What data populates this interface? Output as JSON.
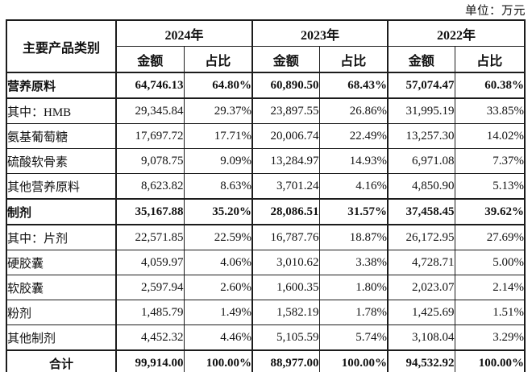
{
  "unit_label": "单位：万元",
  "table": {
    "category_header": "主要产品类别",
    "year_groups": [
      {
        "year": "2024年",
        "sub_headers": [
          "金额",
          "占比"
        ]
      },
      {
        "year": "2023年",
        "sub_headers": [
          "金额",
          "占比"
        ]
      },
      {
        "year": "2022年",
        "sub_headers": [
          "金额",
          "占比"
        ]
      }
    ],
    "rows": [
      {
        "label": "营养原料",
        "bold": true,
        "total": false,
        "values": [
          "64,746.13",
          "64.80%",
          "60,890.50",
          "68.43%",
          "57,074.47",
          "60.38%"
        ]
      },
      {
        "label": "其中：HMB",
        "bold": false,
        "total": false,
        "values": [
          "29,345.84",
          "29.37%",
          "23,897.55",
          "26.86%",
          "31,995.19",
          "33.85%"
        ]
      },
      {
        "label": "氨基葡萄糖",
        "bold": false,
        "total": false,
        "values": [
          "17,697.72",
          "17.71%",
          "20,006.74",
          "22.49%",
          "13,257.30",
          "14.02%"
        ]
      },
      {
        "label": "硫酸软骨素",
        "bold": false,
        "total": false,
        "values": [
          "9,078.75",
          "9.09%",
          "13,284.97",
          "14.93%",
          "6,971.08",
          "7.37%"
        ]
      },
      {
        "label": "其他营养原料",
        "bold": false,
        "total": false,
        "values": [
          "8,623.82",
          "8.63%",
          "3,701.24",
          "4.16%",
          "4,850.90",
          "5.13%"
        ]
      },
      {
        "label": "制剂",
        "bold": true,
        "total": false,
        "values": [
          "35,167.88",
          "35.20%",
          "28,086.51",
          "31.57%",
          "37,458.45",
          "39.62%"
        ]
      },
      {
        "label": "其中：片剂",
        "bold": false,
        "total": false,
        "values": [
          "22,571.85",
          "22.59%",
          "16,787.76",
          "18.87%",
          "26,172.95",
          "27.69%"
        ]
      },
      {
        "label": "硬胶囊",
        "bold": false,
        "total": false,
        "values": [
          "4,059.97",
          "4.06%",
          "3,010.62",
          "3.38%",
          "4,728.71",
          "5.00%"
        ]
      },
      {
        "label": "软胶囊",
        "bold": false,
        "total": false,
        "values": [
          "2,597.94",
          "2.60%",
          "1,600.35",
          "1.80%",
          "2,023.07",
          "2.14%"
        ]
      },
      {
        "label": "粉剂",
        "bold": false,
        "total": false,
        "values": [
          "1,485.79",
          "1.49%",
          "1,582.19",
          "1.78%",
          "1,425.69",
          "1.51%"
        ]
      },
      {
        "label": "其他制剂",
        "bold": false,
        "total": false,
        "values": [
          "4,452.32",
          "4.46%",
          "5,105.59",
          "5.74%",
          "3,108.04",
          "3.29%"
        ]
      },
      {
        "label": "合计",
        "bold": true,
        "total": true,
        "values": [
          "99,914.00",
          "100.00%",
          "88,977.00",
          "100.00%",
          "94,532.92",
          "100.00%"
        ]
      }
    ]
  }
}
